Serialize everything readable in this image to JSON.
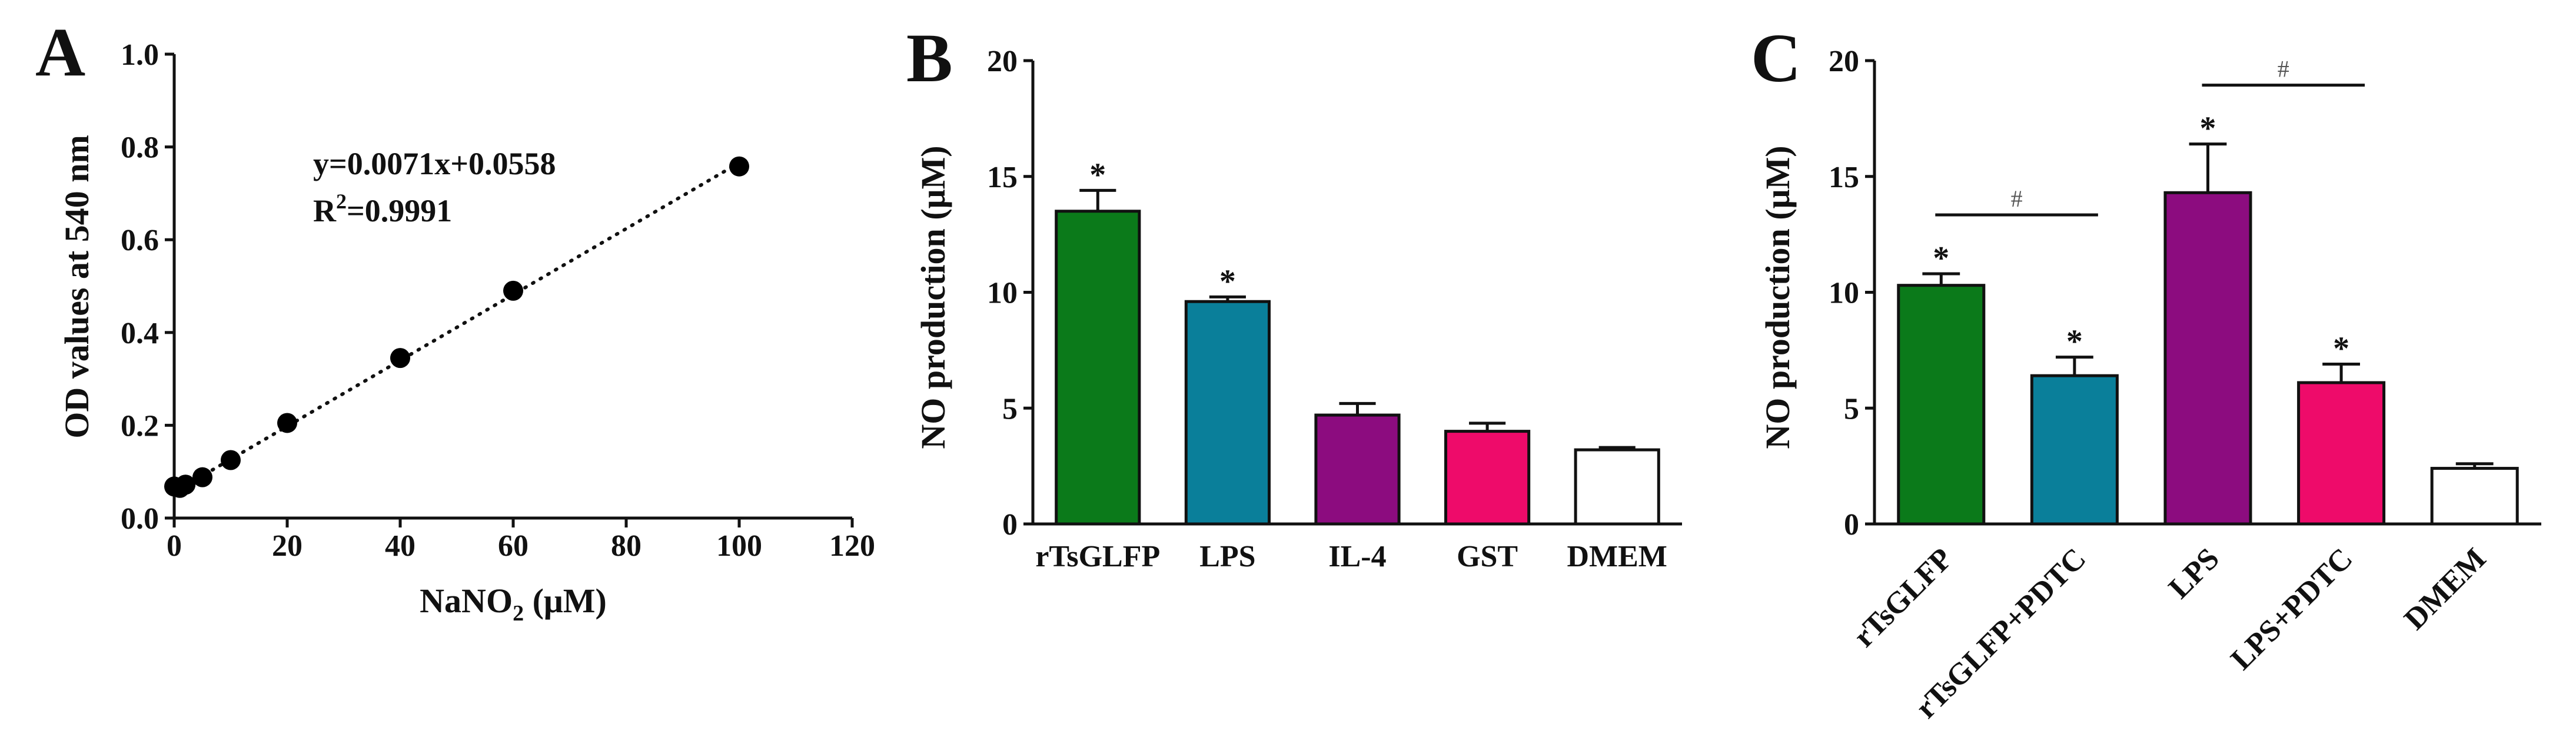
{
  "panels": {
    "a": {
      "letter": "A"
    },
    "b": {
      "letter": "B"
    },
    "c": {
      "letter": "C"
    }
  },
  "chart_data": [
    {
      "panel": "A",
      "type": "scatter",
      "xlabel_main": "NaNO",
      "xlabel_sub": "2",
      "xlabel_tail": " (μM)",
      "ylabel": "OD values at 540 nm",
      "xlim": [
        0,
        120
      ],
      "ylim": [
        0,
        1.0
      ],
      "xticks": [
        "0",
        "20",
        "40",
        "60",
        "80",
        "100",
        "120"
      ],
      "yticks": [
        "0.0",
        "0.2",
        "0.4",
        "0.6",
        "0.8",
        "1.0"
      ],
      "x": [
        0,
        1,
        2,
        5,
        10,
        20,
        40,
        60,
        100
      ],
      "y": [
        0.068,
        0.065,
        0.072,
        0.088,
        0.125,
        0.205,
        0.345,
        0.49,
        0.758
      ],
      "fit": {
        "slope": 0.0071,
        "intercept": 0.0558,
        "style": "dotted"
      },
      "equation": "y=0.0071x+0.0558",
      "r2_prefix": "R",
      "r2_sup": "2",
      "r2_value": "=0.9991",
      "point_color": "#000000"
    },
    {
      "panel": "B",
      "type": "bar",
      "ylabel": "NO production (μM)",
      "ylim": [
        0,
        20
      ],
      "yticks": [
        "0",
        "5",
        "10",
        "15",
        "20"
      ],
      "categories": [
        "rTsGLFP",
        "LPS",
        "IL-4",
        "GST",
        "DMEM"
      ],
      "values": [
        13.5,
        9.6,
        4.7,
        4.0,
        3.2
      ],
      "errors": [
        0.9,
        0.2,
        0.5,
        0.35,
        0.1
      ],
      "colors": [
        "#0b7a1a",
        "#0a7f9a",
        "#8c0c7f",
        "#ee0b6a",
        "#ffffff"
      ],
      "stars": [
        "*",
        "*",
        "",
        "",
        ""
      ]
    },
    {
      "panel": "C",
      "type": "bar",
      "ylabel": "NO production (μM)",
      "ylim": [
        0,
        20
      ],
      "yticks": [
        "0",
        "5",
        "10",
        "15",
        "20"
      ],
      "categories": [
        "rTsGLFP",
        "rTsGLFP+PDTC",
        "LPS",
        "LPS+PDTC",
        "DMEM"
      ],
      "values": [
        10.3,
        6.4,
        14.3,
        6.1,
        2.4
      ],
      "errors": [
        0.5,
        0.8,
        2.1,
        0.8,
        0.2
      ],
      "colors": [
        "#0b7a1a",
        "#0a7f9a",
        "#8c0c7f",
        "#ee0b6a",
        "#ffffff"
      ],
      "stars": [
        "*",
        "*",
        "*",
        "*",
        ""
      ],
      "brackets": [
        {
          "from": 0,
          "to": 1,
          "symbol": "#"
        },
        {
          "from": 2,
          "to": 3,
          "symbol": "#"
        }
      ]
    }
  ]
}
